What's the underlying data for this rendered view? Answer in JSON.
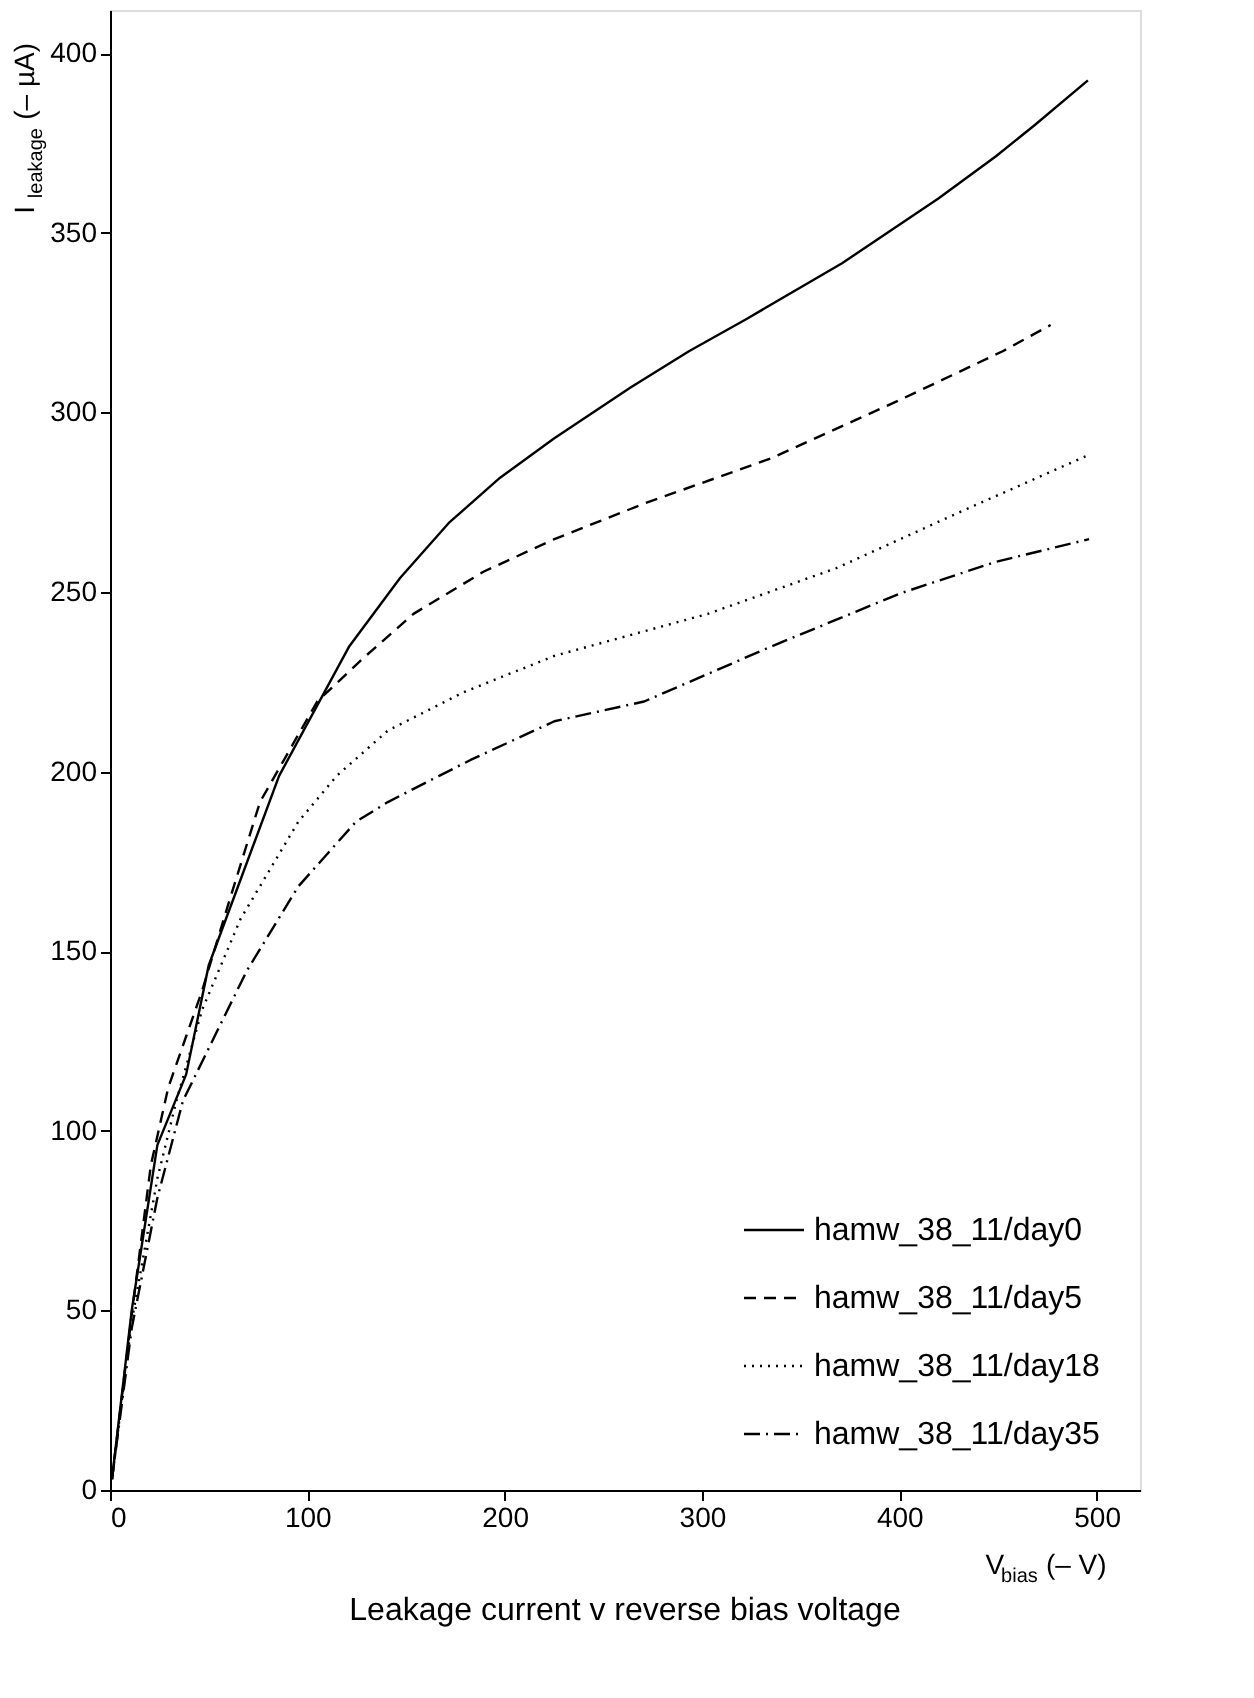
{
  "chart_data": {
    "type": "line",
    "title": "Leakage current v reverse bias voltage",
    "xlabel": "V$_{bias}$ (– V)",
    "ylabel": "I$_{leakage}$ (– µA)",
    "xlim": [
      0,
      522
    ],
    "ylim": [
      0,
      412
    ],
    "xticks": [
      0,
      100,
      200,
      300,
      400,
      500
    ],
    "yticks": [
      0,
      50,
      100,
      150,
      200,
      250,
      300,
      350,
      400
    ],
    "grid": false,
    "legend": "bottom right",
    "marker": "none",
    "series": [
      {
        "name": "hamw_38_11/day0",
        "color": "#000000",
        "line_style": "solid",
        "x": [
          1,
          11,
          24,
          38.6,
          50,
          85.7,
          121.3,
          147,
          171.7,
          197.7,
          225,
          264,
          293.4,
          322.6,
          371,
          420,
          449,
          468.7,
          495.6
        ],
        "values": [
          3,
          50,
          96,
          115.7,
          146,
          198.8,
          234.9,
          253.9,
          269.2,
          281.8,
          292.7,
          307,
          317,
          326,
          341.5,
          359.6,
          371.3,
          380,
          392.4
        ]
      },
      {
        "name": "hamw_38_11/day5",
        "color": "#000000",
        "line_style": "dashed",
        "x": [
          1,
          11,
          20.7,
          29.5,
          46.7,
          59.7,
          76,
          105,
          127.8,
          153.8,
          189.5,
          225.2,
          270.7,
          335.5,
          400.5,
          452.4,
          476.7
        ],
        "values": [
          3,
          48.8,
          90.4,
          112,
          139,
          162.6,
          191.5,
          219.5,
          231.3,
          243.9,
          255.7,
          264.7,
          274.6,
          287.3,
          303.5,
          317,
          324.3
        ]
      },
      {
        "name": "hamw_38_11/day18",
        "color": "#000000",
        "line_style": "dotted",
        "x": [
          1,
          11,
          24,
          33.7,
          46.7,
          66.2,
          95.4,
          114.9,
          140.8,
          179.7,
          225.2,
          303,
          368,
          433,
          496.2
        ],
        "values": [
          3,
          47,
          86.7,
          108.4,
          133.7,
          159,
          186,
          198.8,
          211.4,
          222.2,
          232.2,
          243.9,
          256.6,
          272.8,
          288.2
        ]
      },
      {
        "name": "hamw_38_11/day35",
        "color": "#000000",
        "line_style": "dashdot",
        "x": [
          1,
          11,
          24,
          37,
          53.2,
          69.4,
          95.4,
          124.6,
          140.8,
          166.8,
          183,
          225.2,
          270.7,
          335.5,
          400.5,
          449,
          496.2
        ],
        "values": [
          3,
          45,
          81.3,
          108.4,
          126.5,
          144.6,
          168,
          186,
          191.5,
          198.8,
          203.3,
          214,
          219.5,
          234.9,
          249.6,
          258.4,
          264.7
        ]
      }
    ]
  }
}
